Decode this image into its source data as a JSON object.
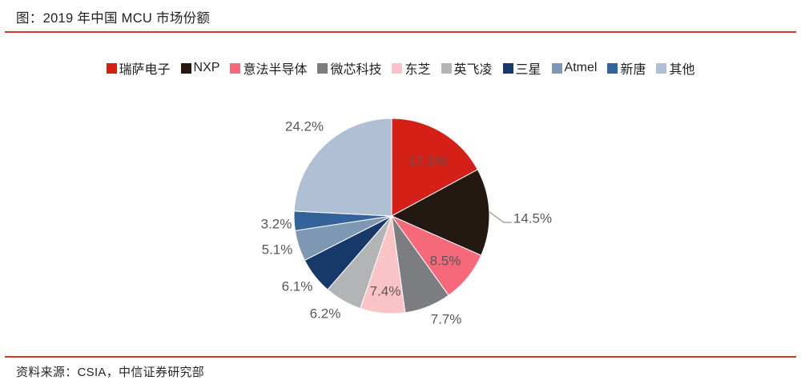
{
  "header": {
    "title": "图：2019 年中国 MCU 市场份额"
  },
  "footer": {
    "source": "资料来源：CSIA，中信证券研究部"
  },
  "colors": {
    "rule_red": "#cf3a28",
    "label_text": "#595757",
    "leader_line": "#a6a6a6",
    "slice_border": "#ffffff"
  },
  "chart_data": {
    "type": "pie",
    "title": "2019 年中国 MCU 市场份额",
    "unit": "%",
    "start_angle_deg": 0,
    "direction": "clockwise",
    "legend_position": "top",
    "pie": {
      "cx": 489,
      "cy": 270,
      "r": 122
    },
    "series": [
      {
        "name": "瑞萨电子",
        "value": 17.1,
        "label": "17.1%",
        "color": "#d42017",
        "label_pos": [
          534,
          201
        ],
        "label_inside": true
      },
      {
        "name": "NXP",
        "value": 14.5,
        "label": "14.5%",
        "color": "#241813",
        "label_pos": [
          665,
          273
        ],
        "label_inside": false,
        "leader": [
          [
            611,
            265
          ],
          [
            629,
            278
          ],
          [
            639,
            278
          ]
        ]
      },
      {
        "name": "意法半导体",
        "value": 8.5,
        "label": "8.5%",
        "color": "#f5697a",
        "label_pos": [
          556,
          326
        ],
        "label_inside": true
      },
      {
        "name": "微芯科技",
        "value": 7.7,
        "label": "7.7%",
        "color": "#7c7d80",
        "label_pos": [
          557,
          399
        ],
        "label_inside": false
      },
      {
        "name": "东芝",
        "value": 7.4,
        "label": "7.4%",
        "color": "#fac3c5",
        "label_pos": [
          481,
          364
        ],
        "label_inside": true
      },
      {
        "name": "英飞凌",
        "value": 6.2,
        "label": "6.2%",
        "color": "#b3b4b6",
        "label_pos": [
          406,
          392
        ],
        "label_inside": false
      },
      {
        "name": "三星",
        "value": 6.1,
        "label": "6.1%",
        "color": "#16396a",
        "label_pos": [
          371,
          358
        ],
        "label_inside": false
      },
      {
        "name": "Atmel",
        "value": 5.1,
        "label": "5.1%",
        "color": "#7e97b2",
        "label_pos": [
          346,
          312
        ],
        "label_inside": false
      },
      {
        "name": "新唐",
        "value": 3.2,
        "label": "3.2%",
        "color": "#33639a",
        "label_pos": [
          345,
          280
        ],
        "label_inside": false
      },
      {
        "name": "其他",
        "value": 24.2,
        "label": "24.2%",
        "color": "#afc0d5",
        "label_pos": [
          380,
          158
        ],
        "label_inside": false
      }
    ]
  }
}
